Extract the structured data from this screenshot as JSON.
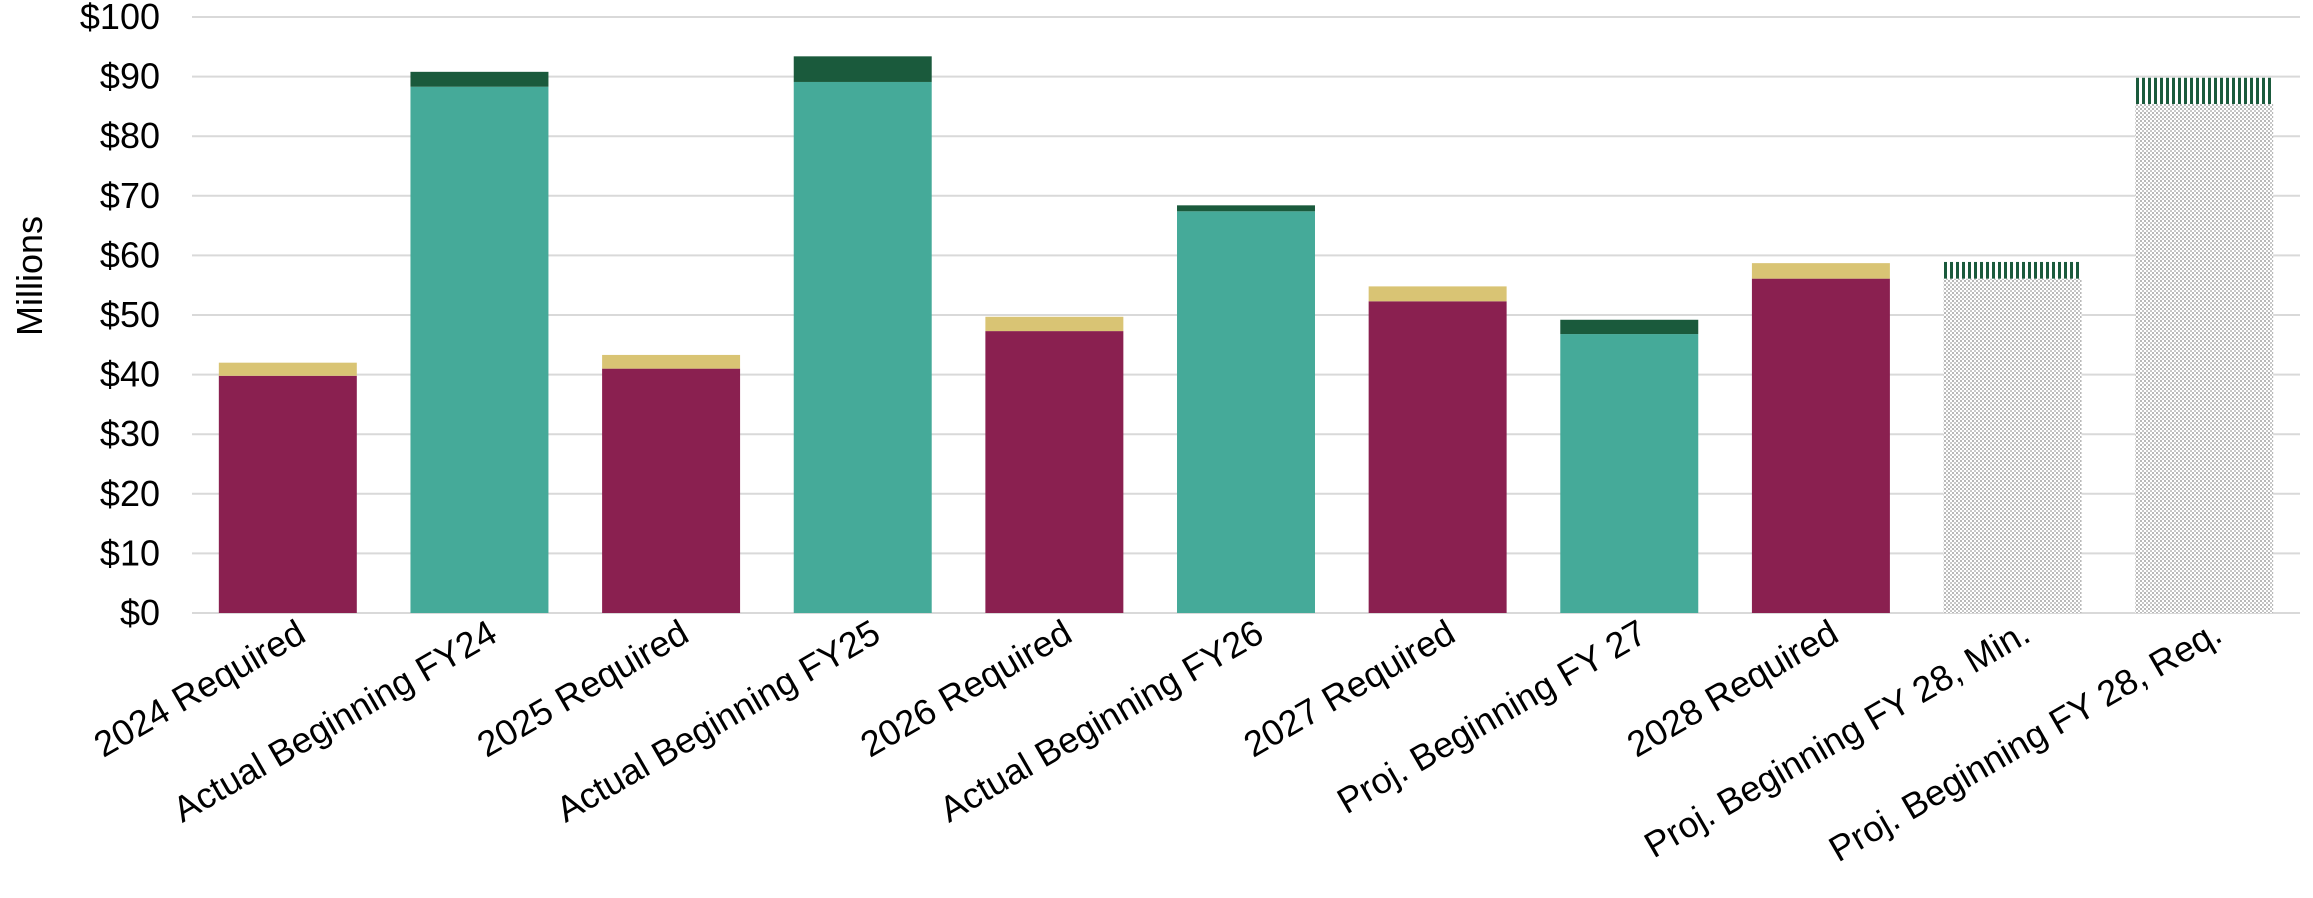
{
  "chart_data": {
    "type": "bar",
    "stacked": true,
    "title": "",
    "xlabel": "",
    "ylabel": "Millions",
    "ylim": [
      0,
      100
    ],
    "y_ticks": [
      0,
      10,
      20,
      30,
      40,
      50,
      60,
      70,
      80,
      90,
      100
    ],
    "y_tick_labels": [
      "$0",
      "$10",
      "$20",
      "$30",
      "$40",
      "$50",
      "$60",
      "$70",
      "$80",
      "$90",
      "$100"
    ],
    "grid": true,
    "legend": "none",
    "categories": [
      "2024 Required",
      "Actual Beginning FY24",
      "2025 Required",
      "Actual Beginning FY25",
      "2026 Required",
      "Actual Beginning FY26",
      "2027 Required",
      "Proj. Beginning FY 27",
      "2028 Required",
      "Proj. Beginning FY 28, Min.",
      "Proj. Beginning FY 28, Req."
    ],
    "bars": [
      {
        "base": 39.8,
        "top": 2.2,
        "base_kind": "required",
        "top_kind": "required-top"
      },
      {
        "base": 88.3,
        "top": 2.5,
        "base_kind": "actual",
        "top_kind": "actual-top"
      },
      {
        "base": 41.0,
        "top": 2.3,
        "base_kind": "required",
        "top_kind": "required-top"
      },
      {
        "base": 89.1,
        "top": 4.3,
        "base_kind": "actual",
        "top_kind": "actual-top"
      },
      {
        "base": 47.3,
        "top": 2.4,
        "base_kind": "required",
        "top_kind": "required-top"
      },
      {
        "base": 67.4,
        "top": 1.0,
        "base_kind": "actual",
        "top_kind": "actual-top"
      },
      {
        "base": 52.3,
        "top": 2.5,
        "base_kind": "required",
        "top_kind": "required-top"
      },
      {
        "base": 46.8,
        "top": 2.4,
        "base_kind": "actual",
        "top_kind": "actual-top"
      },
      {
        "base": 56.1,
        "top": 2.6,
        "base_kind": "required",
        "top_kind": "required-top"
      },
      {
        "base": 56.1,
        "top": 2.8,
        "base_kind": "projected",
        "top_kind": "projected-top"
      },
      {
        "base": 85.4,
        "top": 4.4,
        "base_kind": "projected",
        "top_kind": "projected-top"
      }
    ],
    "colors": {
      "required": "#8a2050",
      "required-top": "#d9c474",
      "actual": "#45aa99",
      "actual-top": "#1a5a3c",
      "projected": "#d4d4d4",
      "projected-top": "#1a5a3c",
      "grid": "#d9d9d9"
    }
  }
}
